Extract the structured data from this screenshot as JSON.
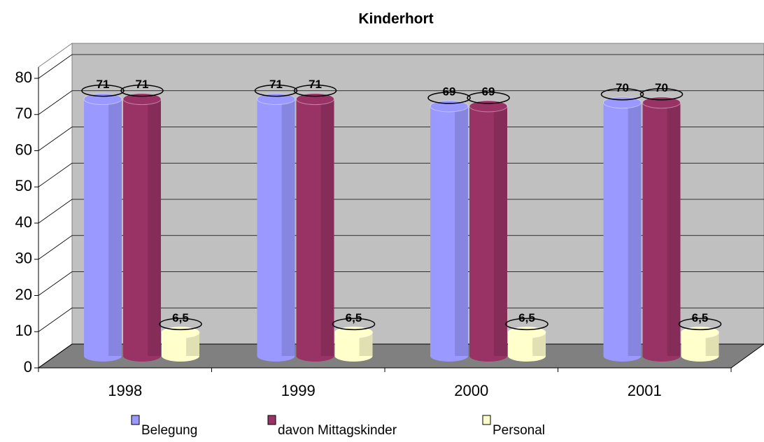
{
  "chart_data": {
    "type": "bar3d",
    "title": "Kinderhort",
    "categories": [
      "1998",
      "1999",
      "2000",
      "2001"
    ],
    "series": [
      {
        "name": "Belegung",
        "color": "#9999ff",
        "values": [
          71,
          71,
          69,
          70
        ]
      },
      {
        "name": "davon Mittagskinder",
        "color": "#993366",
        "values": [
          71,
          71,
          69,
          70
        ]
      },
      {
        "name": "Personal",
        "color": "#ffffcc",
        "values": [
          6.5,
          6.5,
          6.5,
          6.5
        ],
        "value_labels": [
          "6,5",
          "6,5",
          "6,5",
          "6,5"
        ]
      }
    ],
    "ylim": [
      0,
      80
    ],
    "yticks": [
      0,
      10,
      20,
      30,
      40,
      50,
      60,
      70,
      80
    ],
    "grid": true,
    "legend": "bottom"
  }
}
